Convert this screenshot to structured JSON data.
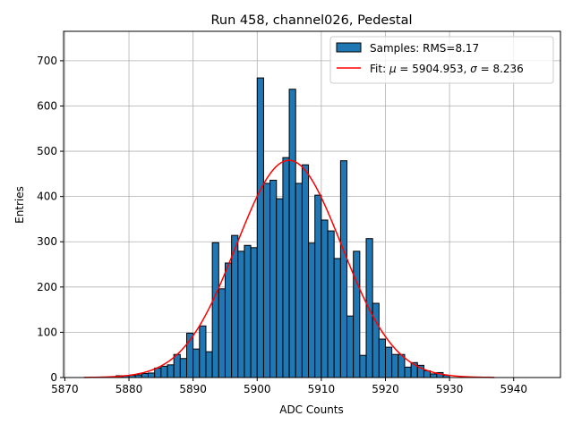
{
  "chart_data": {
    "type": "bar",
    "title": "Run 458, channel026, Pedestal",
    "xlabel": "ADC Counts",
    "ylabel": "Entries",
    "xlim": [
      5869.8,
      5947.3
    ],
    "ylim": [
      0,
      765
    ],
    "grid": true,
    "legend_placement": "top-right",
    "x_ticks": [
      5870,
      5880,
      5890,
      5900,
      5910,
      5920,
      5930,
      5940
    ],
    "y_ticks": [
      0,
      100,
      200,
      300,
      400,
      500,
      600,
      700
    ],
    "bin_width": 1,
    "series": [
      {
        "name": "Samples: RMS=8.17",
        "kind": "histogram",
        "color": "#1f77b4",
        "bin_starts": [
          5878,
          5879,
          5880,
          5881,
          5882,
          5883,
          5884,
          5885,
          5886,
          5887,
          5888,
          5889,
          5890,
          5891,
          5892,
          5893,
          5894,
          5895,
          5896,
          5897,
          5898,
          5899,
          5900,
          5901,
          5902,
          5903,
          5904,
          5905,
          5906,
          5907,
          5908,
          5909,
          5910,
          5911,
          5912,
          5913,
          5914,
          5915,
          5916,
          5917,
          5918,
          5919,
          5920,
          5921,
          5922,
          5923,
          5924,
          5925,
          5926,
          5927,
          5928,
          5929
        ],
        "values": [
          4,
          4,
          5,
          6,
          9,
          10,
          21,
          25,
          28,
          51,
          42,
          98,
          63,
          114,
          57,
          298,
          196,
          253,
          314,
          279,
          292,
          287,
          662,
          429,
          436,
          395,
          486,
          637,
          429,
          470,
          297,
          403,
          348,
          324,
          263,
          479,
          136,
          279,
          49,
          307,
          164,
          85,
          67,
          51,
          51,
          23,
          33,
          27,
          15,
          8,
          11,
          5
        ]
      },
      {
        "name": "Fit: μ = 5904.953, σ = 8.236",
        "kind": "gaussian",
        "color": "#ff0000",
        "mu": 5904.953,
        "sigma": 8.236,
        "amplitude": 480,
        "x_range": [
          5873,
          5937
        ]
      }
    ],
    "legend": {
      "samples_label": "Samples: RMS=8.17",
      "fit_prefix": "Fit: ",
      "fit_mu_sym": "μ",
      "fit_mu_val": " = 5904.953, ",
      "fit_sigma_sym": "σ",
      "fit_sigma_val": " = 8.236"
    }
  }
}
